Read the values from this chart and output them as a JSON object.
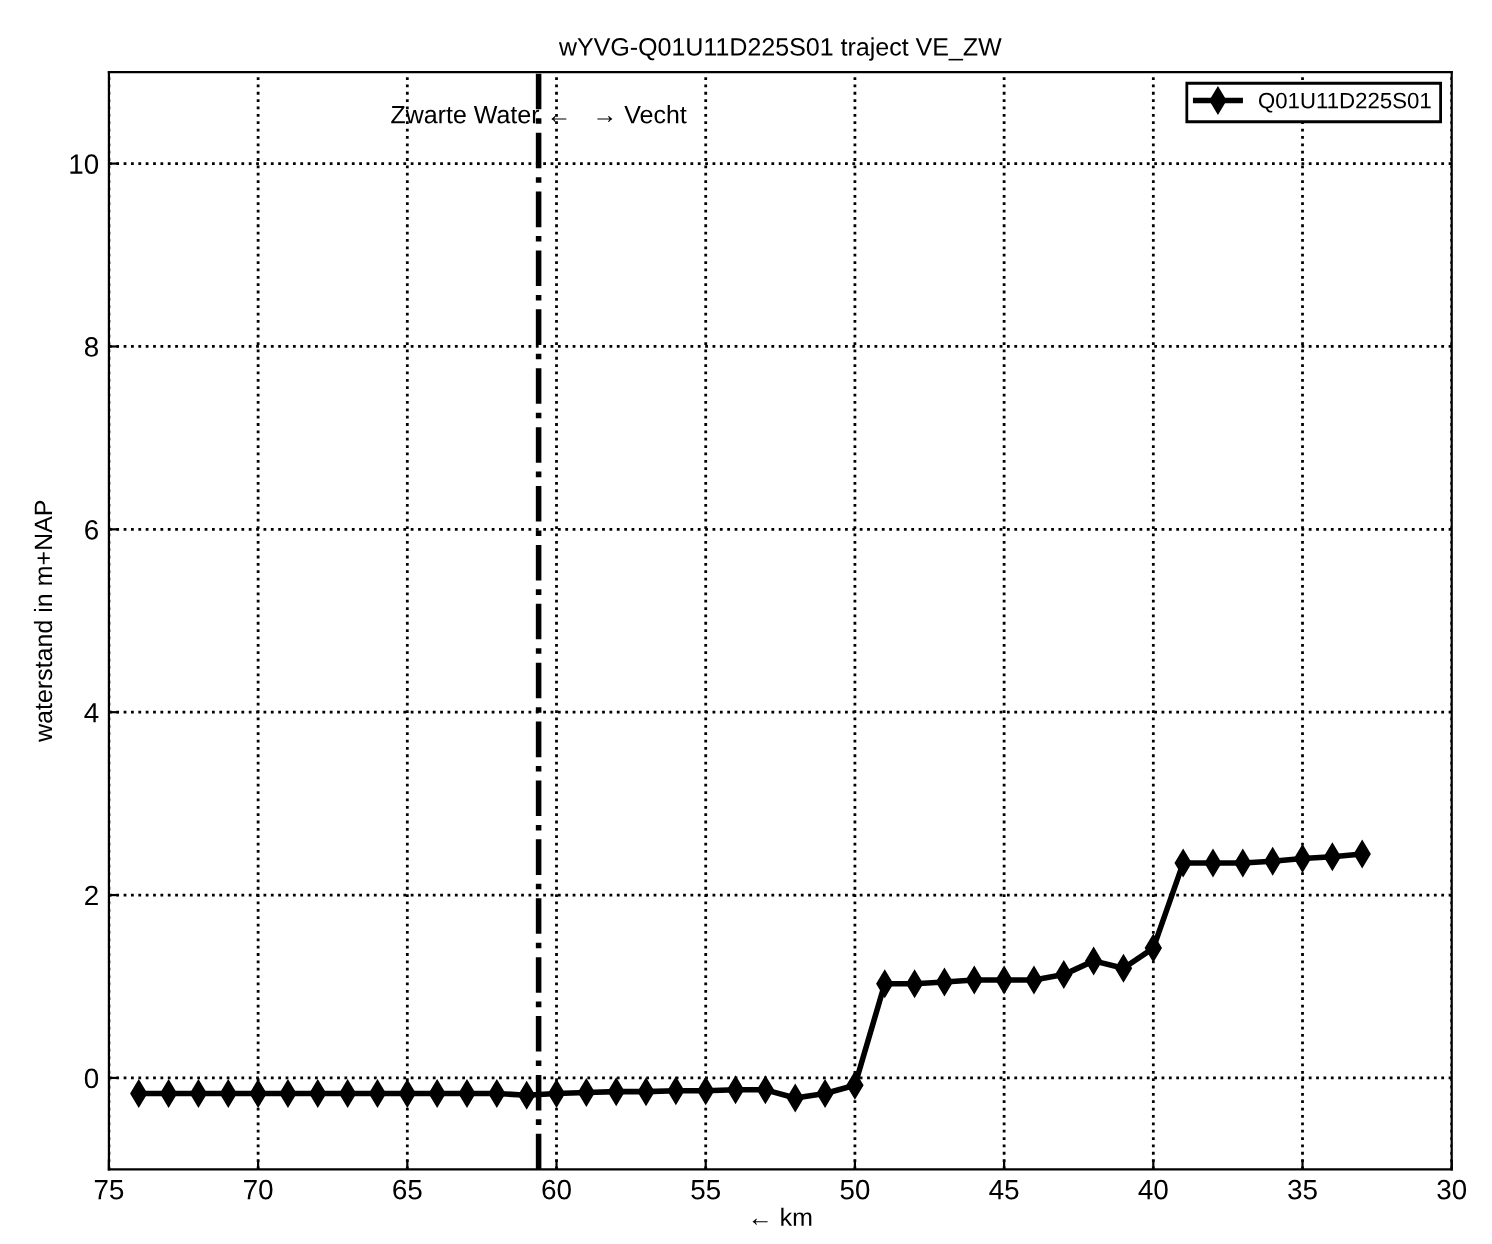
{
  "chart_data": {
    "type": "line",
    "title": "wYVG-Q01U11D225S01 traject VE_ZW",
    "xlabel": "← km",
    "ylabel": "waterstand in m+NAP",
    "x": [
      74,
      73,
      72,
      71,
      70,
      69,
      68,
      67,
      66,
      65,
      64,
      63,
      62,
      61,
      60,
      59,
      58,
      57,
      56,
      55,
      54,
      53,
      52,
      51,
      50,
      49,
      48,
      47,
      46,
      45,
      44,
      43,
      42,
      41,
      40,
      39,
      38,
      37,
      36,
      35,
      34,
      33
    ],
    "series": [
      {
        "name": "Q01U11D225S01",
        "color": "#000000",
        "values": [
          -0.17,
          -0.17,
          -0.17,
          -0.17,
          -0.17,
          -0.17,
          -0.17,
          -0.17,
          -0.17,
          -0.17,
          -0.17,
          -0.17,
          -0.17,
          -0.19,
          -0.17,
          -0.16,
          -0.15,
          -0.15,
          -0.14,
          -0.14,
          -0.13,
          -0.13,
          -0.22,
          -0.17,
          -0.08,
          1.03,
          1.03,
          1.05,
          1.07,
          1.07,
          1.07,
          1.13,
          1.28,
          1.2,
          1.42,
          2.35,
          2.35,
          2.35,
          2.37,
          2.4,
          2.42,
          2.45
        ]
      }
    ],
    "xlim": [
      75,
      30
    ],
    "xticks": [
      75,
      70,
      65,
      60,
      55,
      50,
      45,
      40,
      35,
      30
    ],
    "ylim": [
      -1,
      11
    ],
    "yticks": [
      0,
      2,
      4,
      6,
      8,
      10
    ],
    "ref_lines": [
      {
        "axis": "x",
        "value": 60.6,
        "label": "Zwarte Water ←   → Vecht",
        "color": "#000000",
        "line_style": "dashdot"
      }
    ],
    "grid": true,
    "legend": "top right",
    "marker": "diamond",
    "line_style": "solid"
  }
}
